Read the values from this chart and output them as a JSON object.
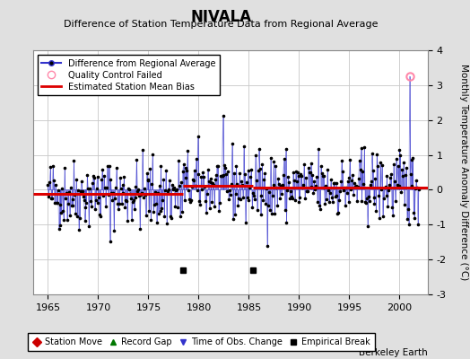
{
  "title": "NIVALA",
  "subtitle": "Difference of Station Temperature Data from Regional Average",
  "ylabel": "Monthly Temperature Anomaly Difference (°C)",
  "xlabel_years": [
    1965,
    1970,
    1975,
    1980,
    1985,
    1990,
    1995,
    2000
  ],
  "xlim": [
    1963.5,
    2002.8
  ],
  "ylim": [
    -3,
    4
  ],
  "yticks": [
    -3,
    -2,
    -1,
    0,
    1,
    2,
    3,
    4
  ],
  "bias_segments": [
    {
      "x_start": 1963.5,
      "x_end": 1978.4,
      "bias": -0.13
    },
    {
      "x_start": 1978.4,
      "x_end": 1985.4,
      "bias": 0.12
    },
    {
      "x_start": 1985.4,
      "x_end": 2002.8,
      "bias": 0.07
    }
  ],
  "empirical_breaks": [
    1978.4,
    1985.4
  ],
  "empirical_break_y": -2.3,
  "quality_control_failed_year": 2001.0,
  "qc_failed_value": 3.25,
  "background_color": "#e0e0e0",
  "plot_bg_color": "#ffffff",
  "line_color": "#3333cc",
  "dot_color": "#000000",
  "bias_color": "#dd0000",
  "qc_color": "#ff88aa",
  "grid_color": "#c8c8c8",
  "watermark": "Berkeley Earth",
  "seed": 42,
  "noise_std": 0.52,
  "years_start": 1965,
  "years_end": 2001
}
